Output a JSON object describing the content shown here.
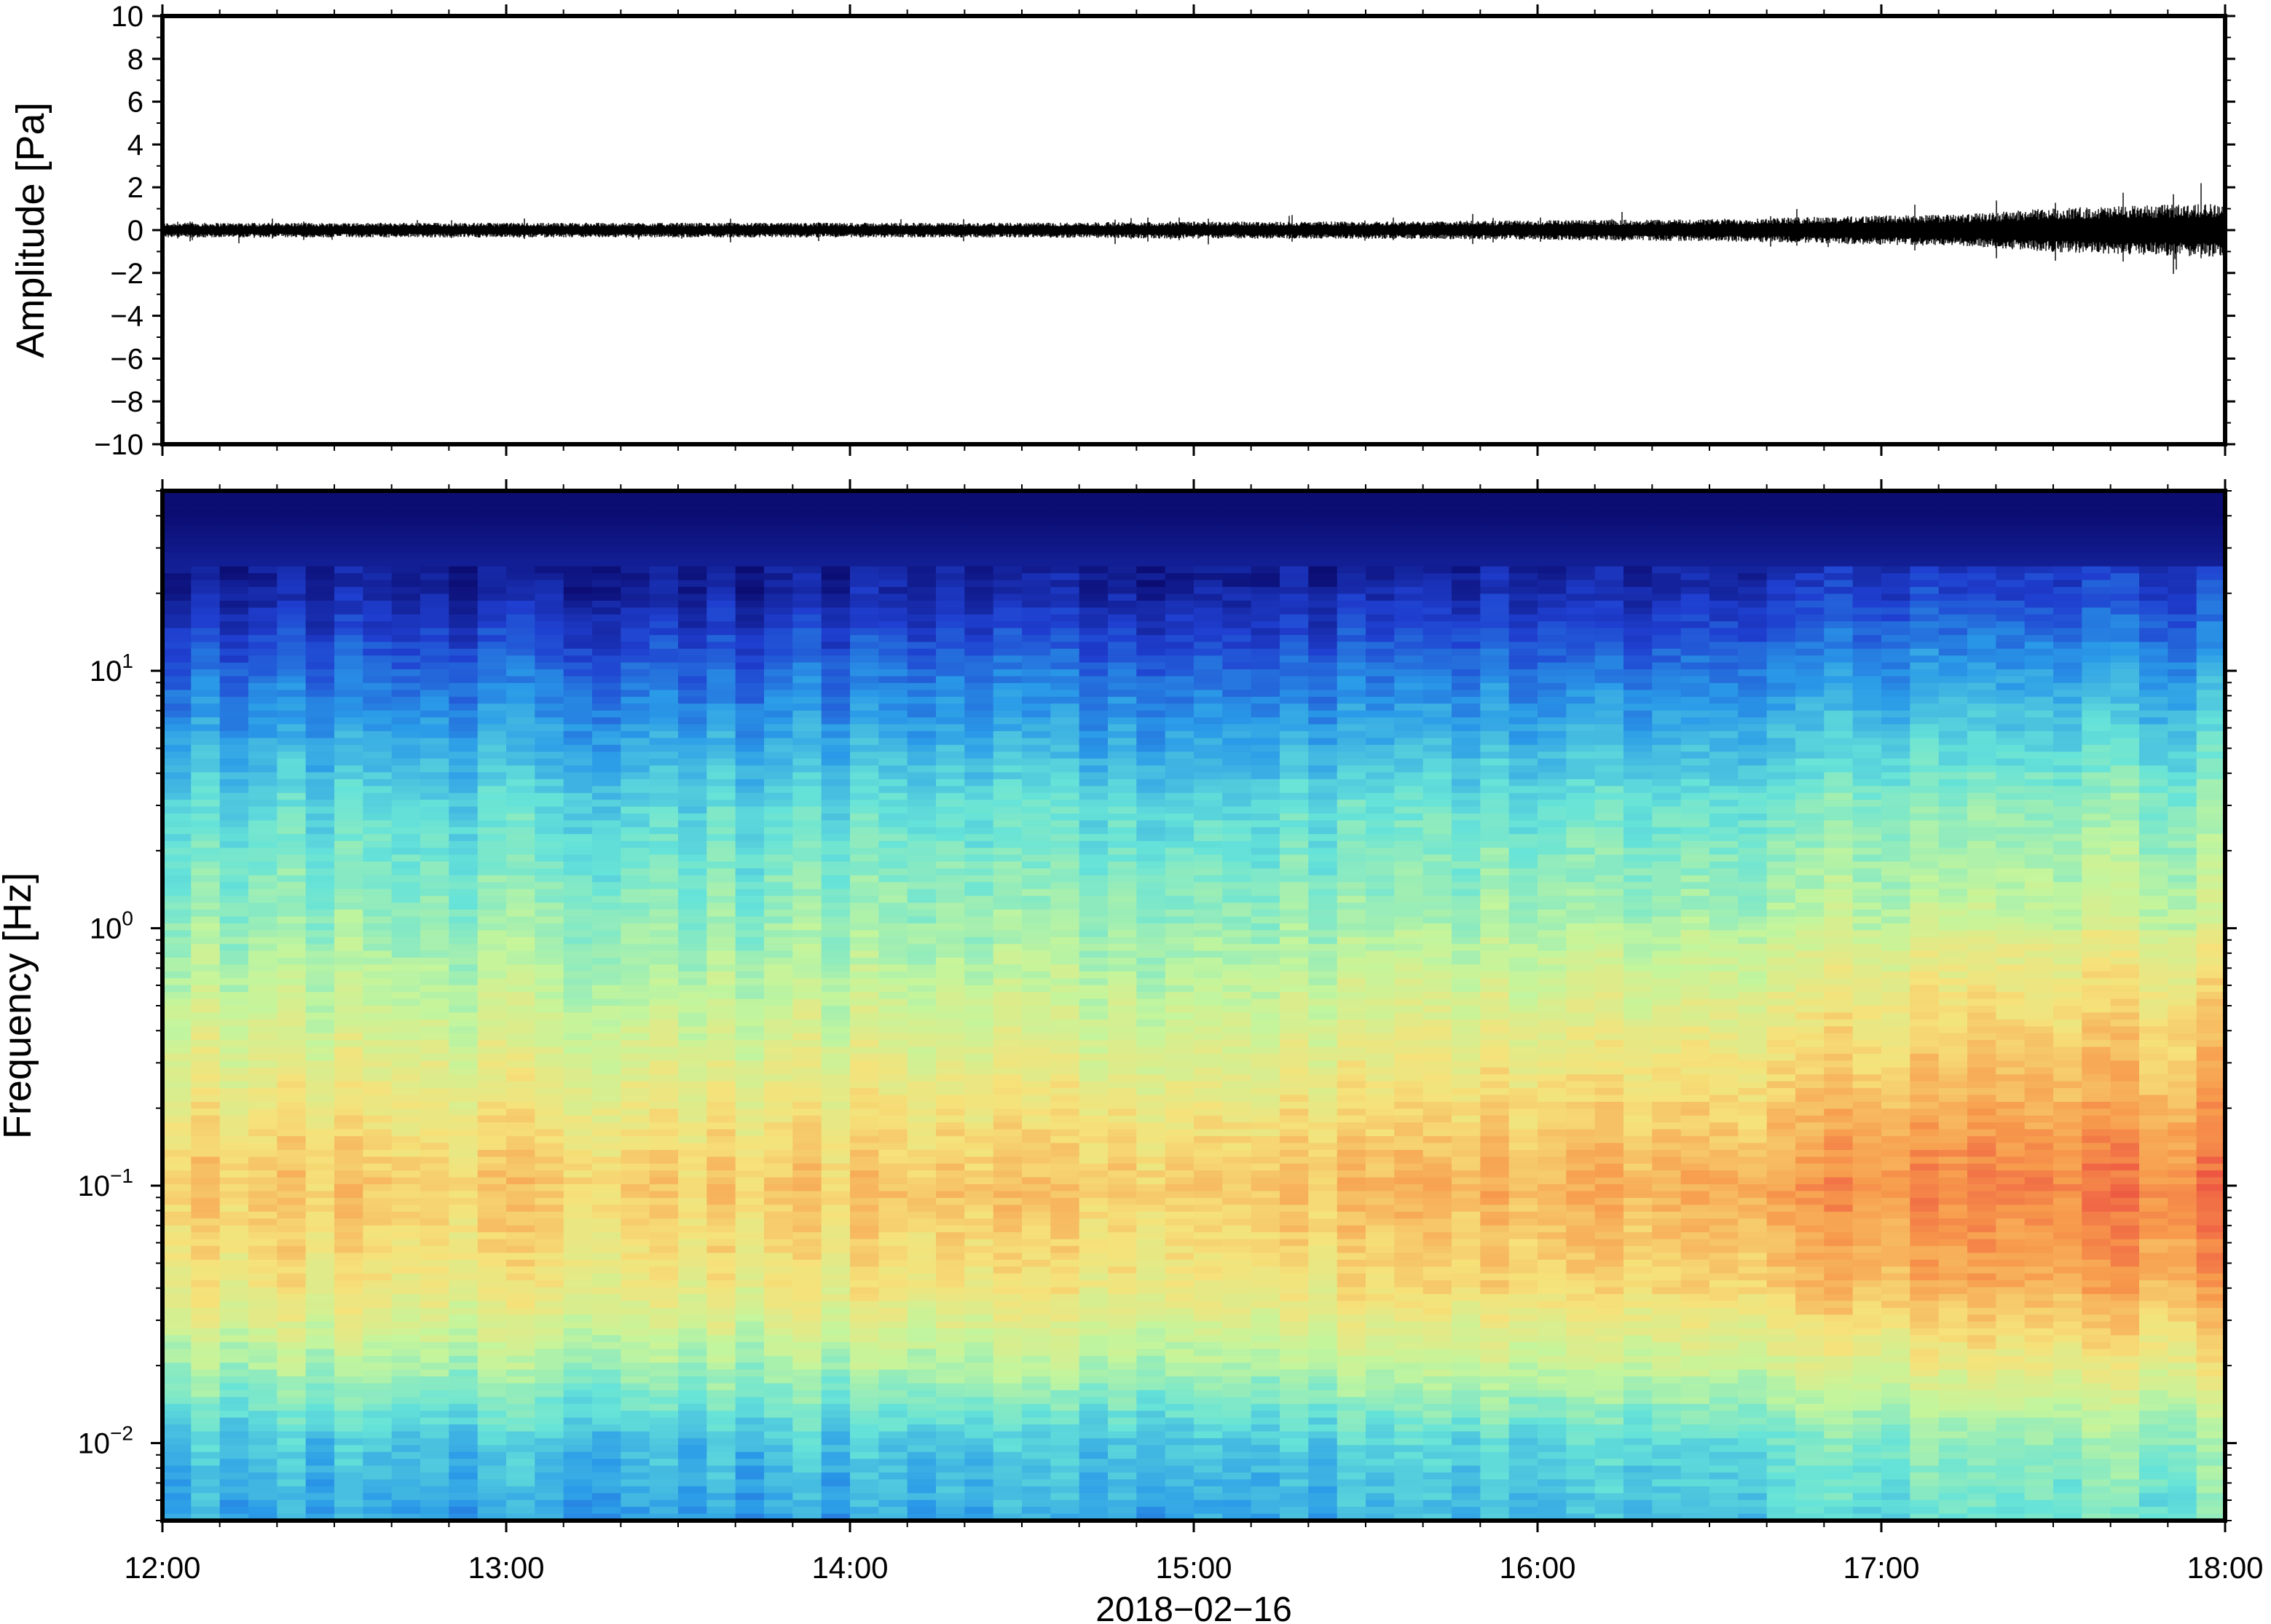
{
  "chart_data": [
    {
      "type": "line",
      "ylabel": "Amplitude [Pa]",
      "ylim": [
        -10,
        10
      ],
      "yticks": [
        10,
        8,
        6,
        4,
        2,
        0,
        -2,
        -4,
        -6,
        -8,
        -10
      ],
      "ytick_labels": [
        "10",
        "8",
        "6",
        "4",
        "2",
        "0",
        "−2",
        "−4",
        "−6",
        "−8",
        "−10"
      ],
      "x_range": [
        "12:00",
        "18:00"
      ],
      "series": [
        {
          "x": [
            "12:00",
            "12:30",
            "13:00",
            "13:30",
            "14:00",
            "14:30",
            "15:00",
            "15:30",
            "16:00",
            "16:30",
            "17:00",
            "17:15",
            "17:30",
            "17:45",
            "18:00"
          ],
          "values": [
            0.3,
            0.3,
            0.3,
            0.3,
            0.3,
            0.3,
            0.35,
            0.35,
            0.4,
            0.45,
            0.6,
            0.65,
            0.9,
            1.0,
            1.1
          ],
          "color": "#000000"
        }
      ],
      "grid": false
    },
    {
      "type": "heatmap",
      "ylabel": "Frequency [Hz]",
      "xlabel": "2018−02−16",
      "yscale": "log",
      "ylim": [
        0.005,
        50
      ],
      "yticks": [
        {
          "base": "10",
          "exp": "1",
          "value": 10
        },
        {
          "base": "10",
          "exp": "0",
          "value": 1
        },
        {
          "base": "10",
          "exp": "−1",
          "value": 0.1
        },
        {
          "base": "10",
          "exp": "−2",
          "value": 0.01
        }
      ],
      "xticks": [
        "12:00",
        "13:00",
        "14:00",
        "15:00",
        "16:00",
        "17:00",
        "18:00"
      ],
      "x_range": [
        "12:00",
        "18:00"
      ],
      "colormap": [
        "#0b0d73",
        "#1f3fd0",
        "#2a9be8",
        "#66e3d8",
        "#c4f59c",
        "#f6e27a",
        "#f79a4c",
        "#ea3f3f"
      ],
      "frequency_levels": [
        {
          "freq": 40,
          "level": 0.0
        },
        {
          "freq": 20,
          "level": 0.08
        },
        {
          "freq": 10,
          "level": 0.22
        },
        {
          "freq": 3,
          "level": 0.42
        },
        {
          "freq": 1,
          "level": 0.52
        },
        {
          "freq": 0.3,
          "level": 0.66
        },
        {
          "freq": 0.1,
          "level": 0.78
        },
        {
          "freq": 0.04,
          "level": 0.7
        },
        {
          "freq": 0.02,
          "level": 0.55
        },
        {
          "freq": 0.01,
          "level": 0.38
        },
        {
          "freq": 0.005,
          "level": 0.32
        }
      ],
      "time_trend": [
        {
          "time": "12:00",
          "shift": 0.0
        },
        {
          "time": "14:00",
          "shift": -0.02
        },
        {
          "time": "15:00",
          "shift": 0.0
        },
        {
          "time": "16:00",
          "shift": 0.04
        },
        {
          "time": "17:00",
          "shift": 0.08
        },
        {
          "time": "18:00",
          "shift": 0.13
        }
      ],
      "grid": false
    }
  ]
}
